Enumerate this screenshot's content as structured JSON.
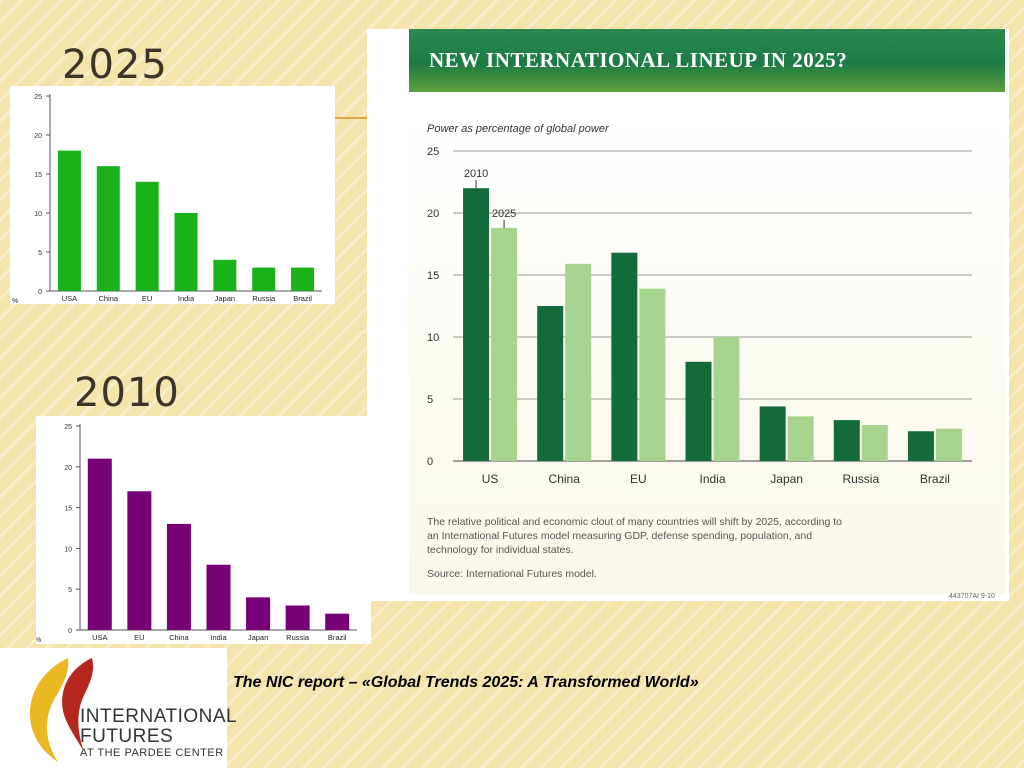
{
  "headings": {
    "left_top": "2025",
    "left_bottom": "2010"
  },
  "banner": {
    "title": "NEW INTERNATIONAL LINEUP IN 2025?"
  },
  "main_chart": {
    "subtitle": "Power as percentage of global power",
    "label_2010": "2010",
    "label_2025": "2025",
    "caption": "The relative political and economic clout of many countries will shift by 2025, according to an International Futures model measuring GDP, defense spending, population, and technology for individual states.",
    "source": "Source: International Futures model.",
    "code": "443707AI 9-10"
  },
  "report": "The NIC report – «Global Trends 2025: A Transformed World»",
  "logo": {
    "line1": "INTERNATIONAL",
    "line2": "FUTURES",
    "line3": "AT THE PARDEE CENTER"
  },
  "colors": {
    "green_small": "#19b219",
    "purple_small": "#770077",
    "dark_2010": "#136b3a",
    "light_2025": "#a6d48e",
    "banner": "#1e7a45",
    "gold_line": "#e0a44a"
  },
  "chart_data": [
    {
      "type": "bar",
      "categories": [
        "USA",
        "China",
        "EU",
        "India",
        "Japan",
        "Russia",
        "Brazil"
      ],
      "values": [
        18,
        16,
        14,
        10,
        4,
        3,
        3
      ],
      "title": "",
      "xlabel": "",
      "ylabel": "%",
      "ylim": [
        0,
        25
      ],
      "yticks": [
        0,
        5,
        10,
        15,
        20,
        25
      ],
      "grid": false,
      "color": "#19b219"
    },
    {
      "type": "bar",
      "categories": [
        "USA",
        "EU",
        "China",
        "India",
        "Japan",
        "Russia",
        "Brazil"
      ],
      "values": [
        21,
        17,
        13,
        8,
        4,
        3,
        2
      ],
      "title": "",
      "xlabel": "",
      "ylabel": "%",
      "ylim": [
        0,
        25
      ],
      "yticks": [
        0,
        5,
        10,
        15,
        20,
        25
      ],
      "grid": false,
      "color": "#770077"
    },
    {
      "type": "bar",
      "categories": [
        "US",
        "China",
        "EU",
        "India",
        "Japan",
        "Russia",
        "Brazil"
      ],
      "series": [
        {
          "name": "2010",
          "values": [
            22,
            12.5,
            16.8,
            8,
            4.4,
            3.3,
            2.4
          ],
          "color": "#136b3a"
        },
        {
          "name": "2025",
          "values": [
            18.8,
            15.9,
            13.9,
            10,
            3.6,
            2.9,
            2.6
          ],
          "color": "#a6d48e"
        }
      ],
      "title": "",
      "xlabel": "",
      "ylabel": "Power as percentage of global power",
      "ylim": [
        0,
        25
      ],
      "yticks": [
        0,
        5,
        10,
        15,
        20,
        25
      ],
      "grid": true
    }
  ]
}
